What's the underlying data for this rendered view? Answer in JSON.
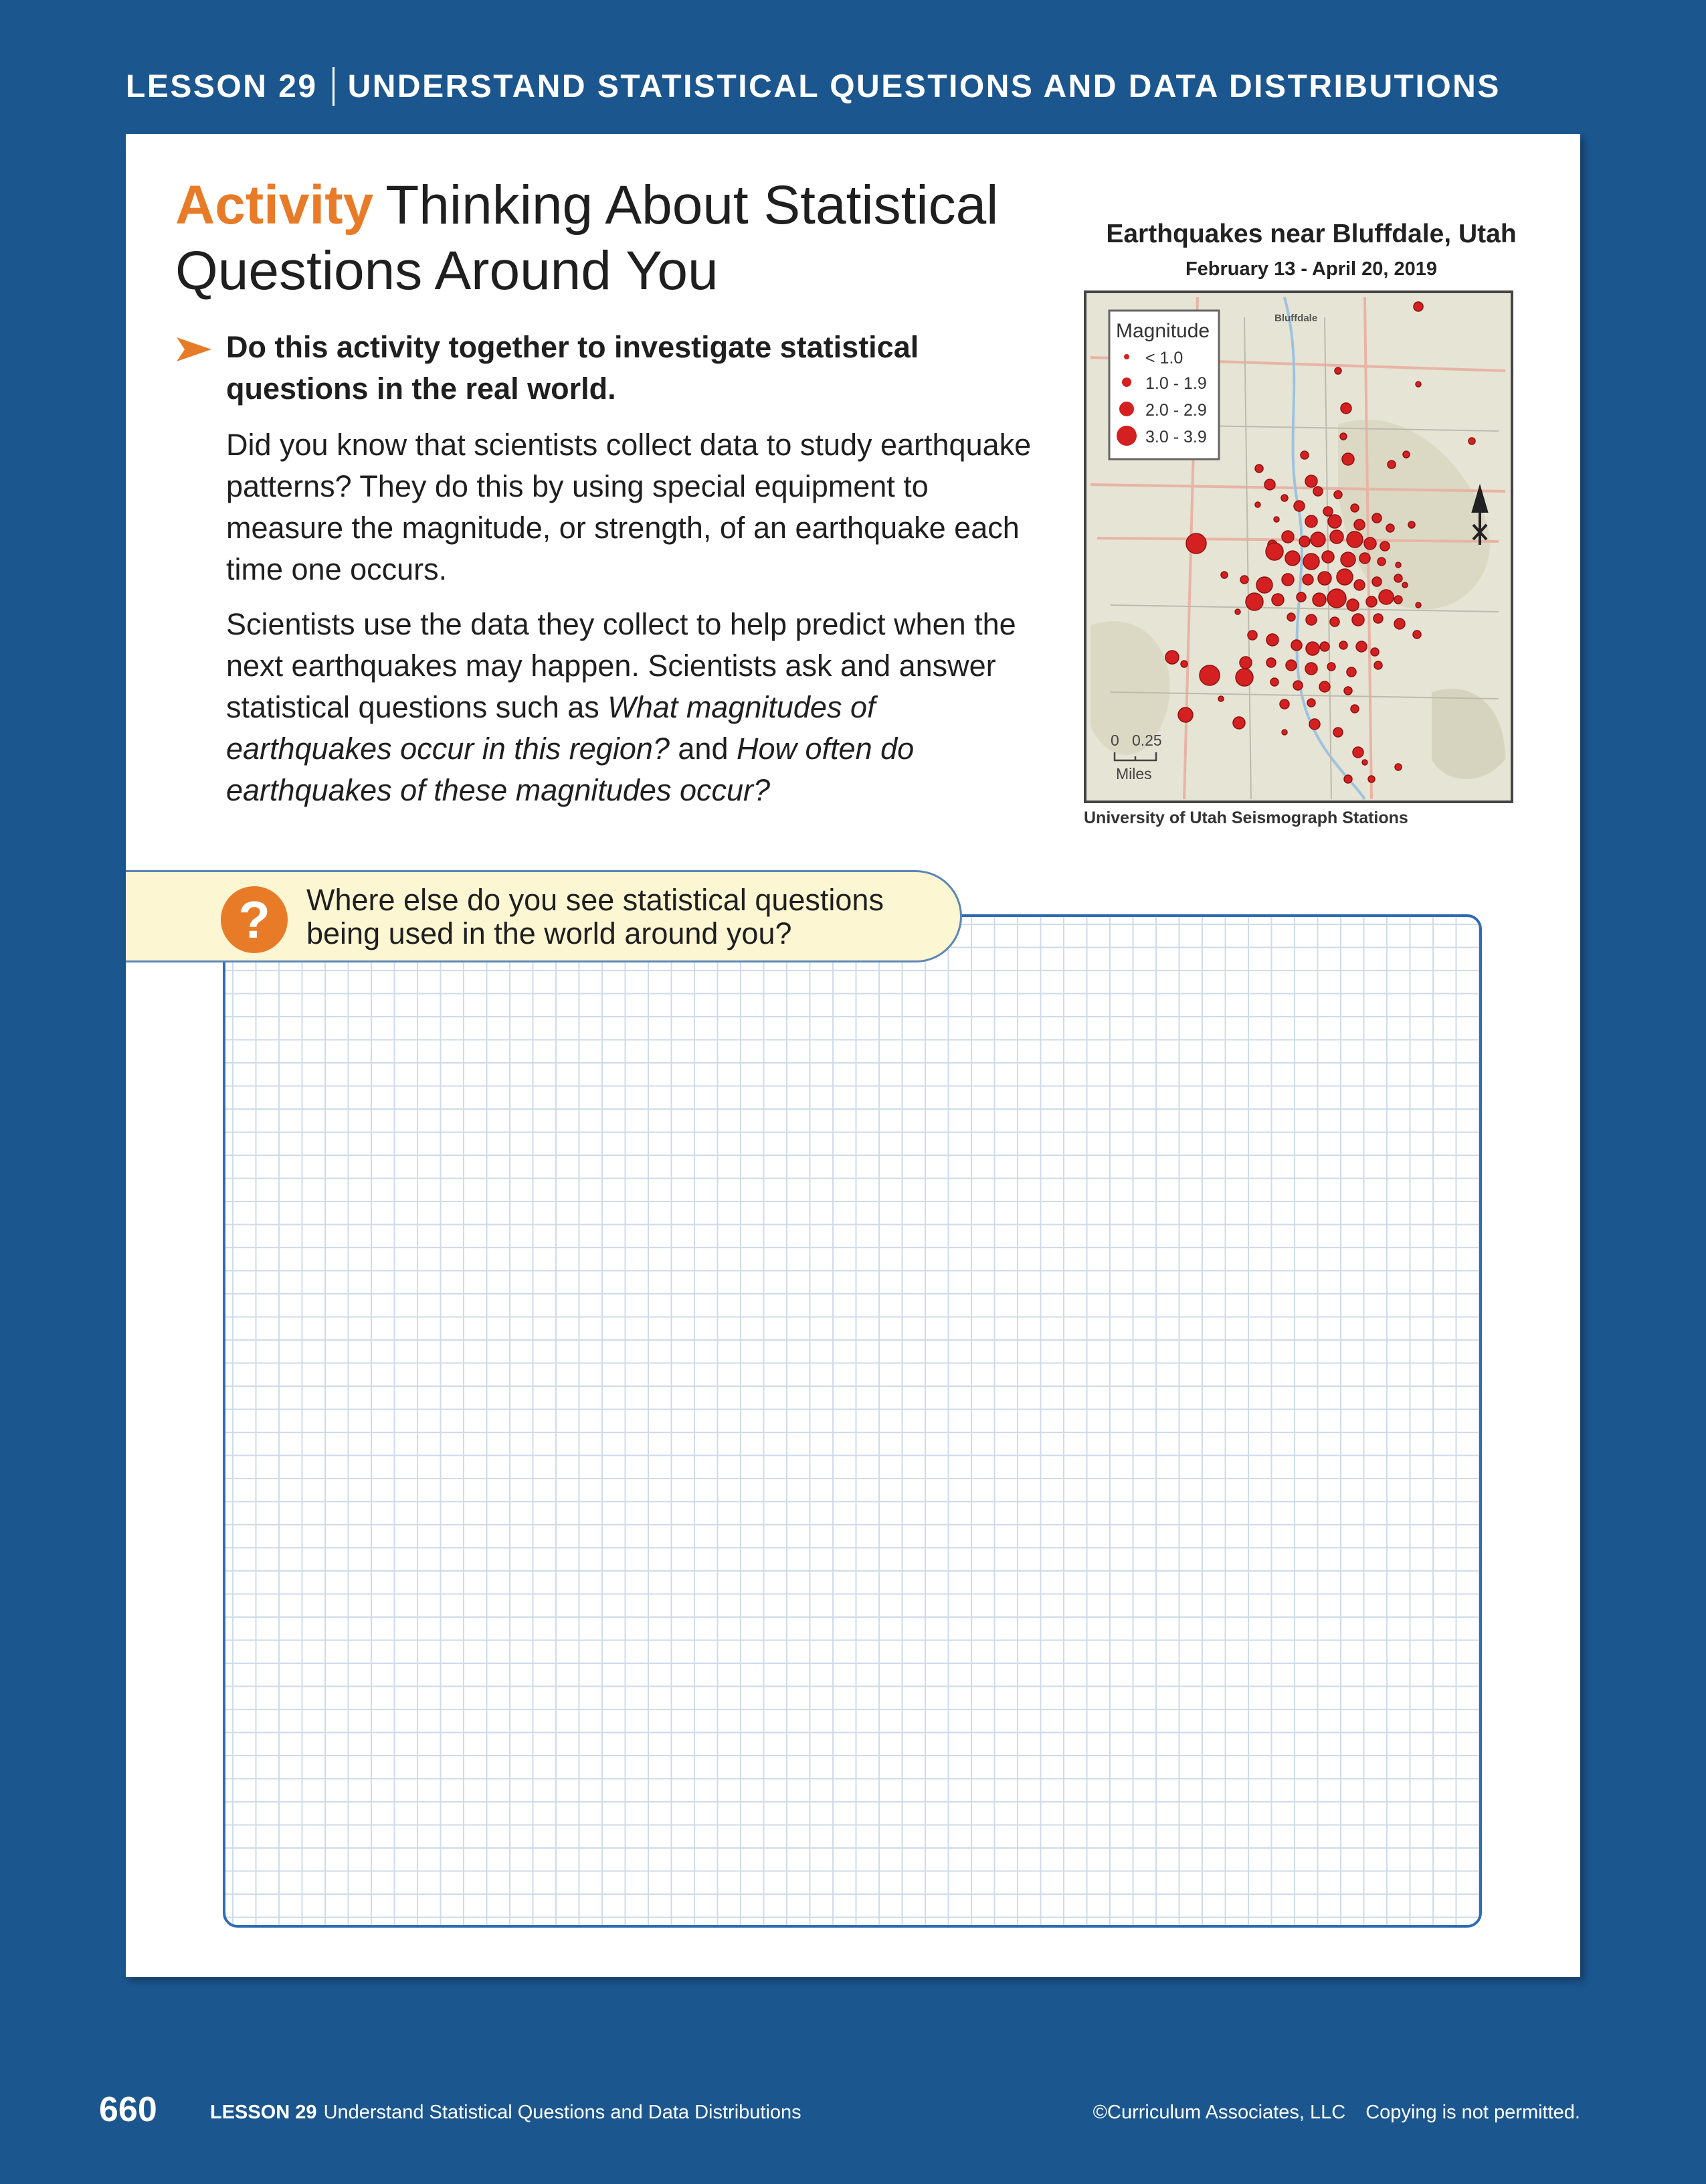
{
  "header": {
    "lesson": "LESSON 29",
    "title": "UNDERSTAND STATISTICAL QUESTIONS AND DATA DISTRIBUTIONS"
  },
  "activity": {
    "label": "Activity",
    "title": "Thinking About Statistical Questions Around You",
    "prompt": "Do this activity together to investigate statistical questions in the real world.",
    "paragraph1": "Did you know that scientists collect data to study earthquake patterns? They do this by using special equipment to measure the magnitude, or strength, of an earthquake each time one occurs.",
    "paragraph2_start": "Scientists use the data they collect to help predict when the next earthquakes may happen. Scientists ask and answer statistical questions such as ",
    "paragraph2_q1": "What magnitudes of earthquakes occur in this region?",
    "paragraph2_mid": " and ",
    "paragraph2_q2": "How often do earthquakes of these magnitudes occur?"
  },
  "map": {
    "title": "Earthquakes near Bluffdale, Utah",
    "subtitle": "February 13 - April 20, 2019",
    "legend_title": "Magnitude",
    "legend_items": [
      "< 1.0",
      "1.0 - 1.9",
      "2.0 - 2.9",
      "3.0 - 3.9"
    ],
    "place_label": "Bluffdale",
    "scale_values": "0   0.25",
    "scale_unit": "Miles",
    "credit": "University of Utah Seismograph Stations",
    "marker_color": "#d42020",
    "north_arrow_icon": "north-arrow-icon"
  },
  "question": {
    "icon": "question-mark-icon",
    "symbol": "?",
    "text": "Where else do you see statistical questions being used in the world around you?"
  },
  "footer": {
    "page_number": "660",
    "lesson": "LESSON 29",
    "lesson_title": "Understand Statistical Questions and Data Distributions",
    "copyright": "©Curriculum Associates, LLC",
    "notice": "Copying is not permitted."
  }
}
